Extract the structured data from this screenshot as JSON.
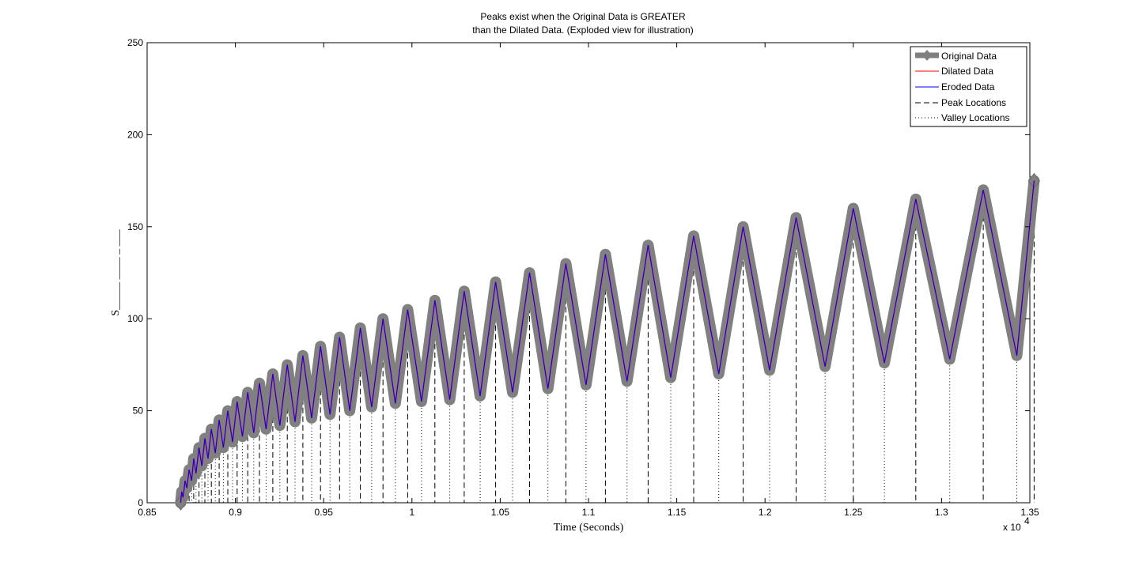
{
  "chart_data": {
    "type": "line",
    "title": [
      "Peaks exist when the Original Data is GREATER",
      "than the Dilated Data. (Exploded view for illustration)"
    ],
    "xlabel": "Time (Seconds)",
    "ylabel": "S_____ ____ _ ___",
    "xlim": [
      8500,
      13500
    ],
    "ylim": [
      0,
      250
    ],
    "x_exponent_label": "x 10",
    "x_exponent_power": "4",
    "xticks": [
      8500,
      9000,
      9500,
      10000,
      10500,
      11000,
      11500,
      12000,
      12500,
      13000,
      13500
    ],
    "xtick_labels": [
      "0.85",
      "0.9",
      "0.95",
      "1",
      "1.05",
      "1.1",
      "1.15",
      "1.2",
      "1.25",
      "1.3",
      "1.35"
    ],
    "yticks": [
      0,
      50,
      100,
      150,
      200,
      250
    ],
    "ytick_labels": [
      "0",
      "50",
      "100",
      "150",
      "200",
      "250"
    ],
    "grid": false,
    "legend_position": "top-right",
    "legend": [
      "Original Data",
      "Dilated Data",
      "Eroded Data",
      "Peak Locations",
      "Valley Locations"
    ],
    "colors": {
      "original": "#808080",
      "dilated": "#ff0000",
      "eroded": "#0000ff",
      "markers": "#000000"
    },
    "series": [
      {
        "name": "Original Data",
        "style": "thick-gray-line-diamond-markers",
        "x": [
          8690,
          8696,
          8704,
          8715,
          8725,
          8738,
          8752,
          8764,
          8777,
          8794,
          8810,
          8827,
          8845,
          8864,
          8886,
          8908,
          8932,
          8957,
          8984,
          9010,
          9040,
          9070,
          9104,
          9136,
          9174,
          9212,
          9252,
          9294,
          9338,
          9382,
          9432,
          9482,
          9536,
          9590,
          9648,
          9708,
          9772,
          9836,
          9906,
          9976,
          10054,
          10130,
          10214,
          10296,
          10386,
          10474,
          10570,
          10666,
          10770,
          10872,
          10986,
          11096,
          11218,
          11338,
          11466,
          11596,
          11738,
          11876,
          12026,
          12176,
          12340,
          12500,
          12676,
          12854,
          13046,
          13236,
          13426,
          13524
        ],
        "y": [
          0,
          6,
          3,
          12,
          8,
          18,
          12,
          24,
          16,
          30,
          20,
          35,
          24,
          40,
          27,
          45,
          30,
          50,
          33,
          55,
          36,
          60,
          38,
          65,
          40,
          70,
          42,
          75,
          44,
          80,
          46,
          85,
          48,
          90,
          50,
          95,
          52,
          100,
          54,
          105,
          55,
          110,
          56,
          115,
          58,
          120,
          60,
          125,
          62,
          130,
          64,
          135,
          66,
          140,
          68,
          145,
          70,
          150,
          72,
          155,
          74,
          160,
          76,
          165,
          78,
          170,
          80,
          175
        ]
      },
      {
        "name": "Dilated Data",
        "style": "thin-red-line"
      },
      {
        "name": "Eroded Data",
        "style": "thin-blue-line"
      },
      {
        "name": "Peak Locations",
        "style": "dashed-black-verticals"
      },
      {
        "name": "Valley Locations",
        "style": "dotted-black-verticals"
      }
    ]
  }
}
